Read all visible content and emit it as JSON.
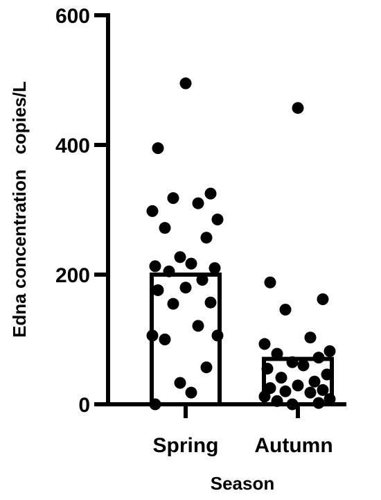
{
  "chart_data": {
    "type": "bar",
    "title": "",
    "xlabel": "Season",
    "ylabel": "Edna concentration   copies/L",
    "ylim": [
      0,
      600
    ],
    "yticks": [
      0,
      200,
      400,
      600
    ],
    "grid": false,
    "categories": [
      "Spring",
      "Autumn"
    ],
    "values": [
      200,
      70
    ],
    "points": [
      [
        495,
        395,
        325,
        318,
        310,
        298,
        285,
        272,
        257,
        227,
        217,
        213,
        210,
        205,
        192,
        180,
        176,
        157,
        155,
        121,
        106,
        106,
        100,
        57,
        33,
        18,
        0
      ],
      [
        457,
        188,
        162,
        146,
        103,
        93,
        82,
        78,
        72,
        65,
        60,
        55,
        46,
        41,
        35,
        29,
        25,
        22,
        20,
        18,
        12,
        8,
        5,
        2,
        0
      ]
    ],
    "colors": {
      "bar_fill": "#ffffff",
      "bar_stroke": "#000000",
      "point": "#000000",
      "axis": "#000000"
    }
  }
}
